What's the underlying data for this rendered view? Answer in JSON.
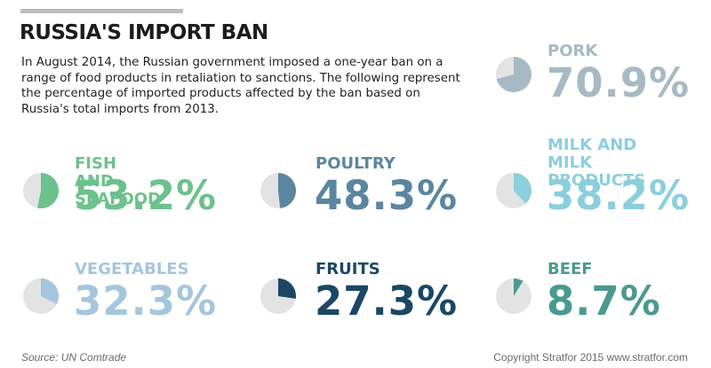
{
  "header": {
    "title": "RUSSIA'S IMPORT BAN",
    "intro": "In August 2014, the Russian government imposed a one-year ban on a range of food products in retaliation to sanctions. The following represent the percentage of imported products affected by the ban based on Russia's total imports from 2013."
  },
  "chart_data": {
    "type": "pie",
    "title": "RUSSIA'S IMPORT BAN",
    "unit": "%",
    "series": [
      {
        "name": "PORK",
        "value": 70.9,
        "display": "70.9%",
        "color": "#a7bac4"
      },
      {
        "name": "FISH AND SEAFOOD",
        "value": 53.2,
        "display": "53.2%",
        "color": "#6dc18d"
      },
      {
        "name": "POULTRY",
        "value": 48.3,
        "display": "48.3%",
        "color": "#5a86a0"
      },
      {
        "name": "MILK AND MILK\nPRODUCTS",
        "value": 38.2,
        "display": "38.2%",
        "color": "#8ccfdc"
      },
      {
        "name": "VEGETABLES",
        "value": 32.3,
        "display": "32.3%",
        "color": "#a5c6dc"
      },
      {
        "name": "FRUITS",
        "value": 27.3,
        "display": "27.3%",
        "color": "#1b4864"
      },
      {
        "name": "BEEF",
        "value": 8.7,
        "display": "8.7%",
        "color": "#4a9a90"
      }
    ],
    "remainder_color": "#e3e3e3"
  },
  "footer": {
    "source": "Source: UN Comtrade",
    "copyright": "Copyright Stratfor 2015   www.stratfor.com"
  }
}
